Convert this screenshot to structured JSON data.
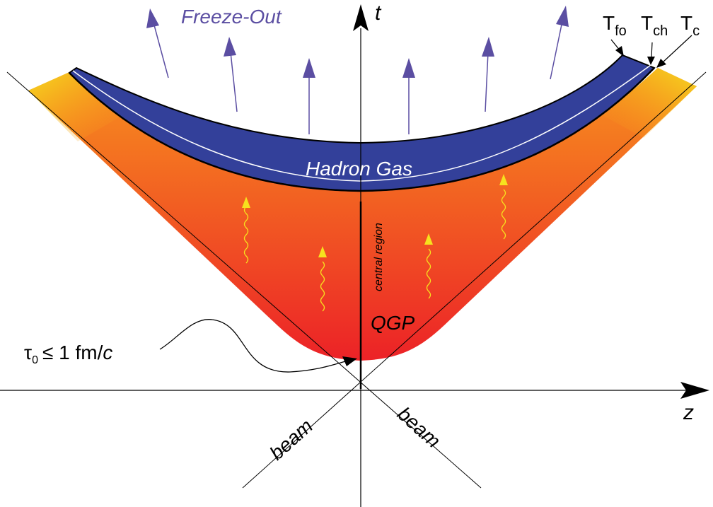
{
  "axes": {
    "time_label": "t",
    "space_label": "z"
  },
  "labels": {
    "freeze_out": "Freeze-Out",
    "hadron_gas": "Hadron Gas",
    "qgp": "QGP",
    "central_region": "central region",
    "beam_left": "beam",
    "beam_right": "beam",
    "tau_symbol": "τ",
    "tau_subscript": "0",
    "tau_relation": "≤ 1 fm/",
    "tau_c": "c",
    "t_fo_main": "T",
    "t_fo_sub": "fo",
    "t_ch_main": "T",
    "t_ch_sub": "ch",
    "t_c_main": "T",
    "t_c_sub": "c"
  },
  "colors": {
    "hadron_gas_band": "#33409a",
    "qgp_top": "#f7931e",
    "qgp_bottom": "#ec2227",
    "edge_yellow": "#f6e11e",
    "freeze_out_arrows": "#5b4ea2",
    "freeze_out_text": "#5b4ea2",
    "photon_arrows": "#f6e11e",
    "axis": "#000000"
  }
}
